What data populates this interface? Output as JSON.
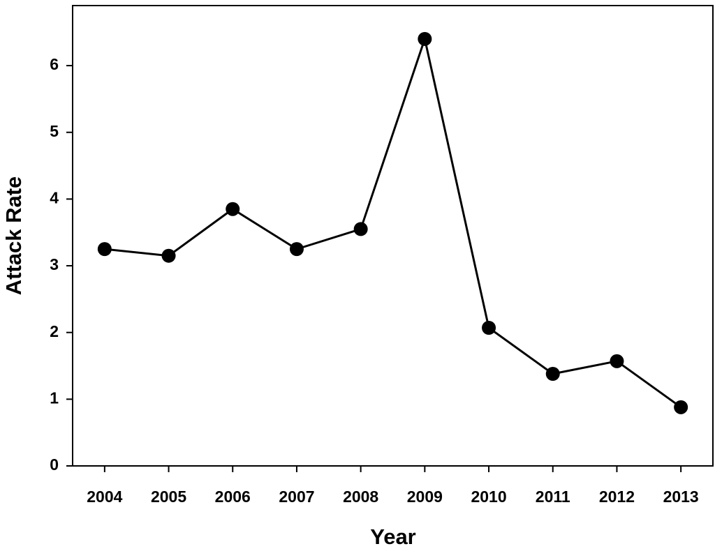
{
  "chart_data": {
    "type": "line",
    "x_label": "Year",
    "y_label": "Attack Rate",
    "categories": [
      "2004",
      "2005",
      "2006",
      "2007",
      "2008",
      "2009",
      "2010",
      "2011",
      "2012",
      "2013"
    ],
    "values": [
      3.25,
      3.15,
      3.85,
      3.25,
      3.55,
      6.4,
      2.07,
      1.38,
      1.57,
      0.88
    ],
    "color": "#000000",
    "ylim": [
      0,
      6.9
    ],
    "yticks": [
      0,
      1,
      2,
      3,
      4,
      5,
      6
    ],
    "grid": false
  }
}
